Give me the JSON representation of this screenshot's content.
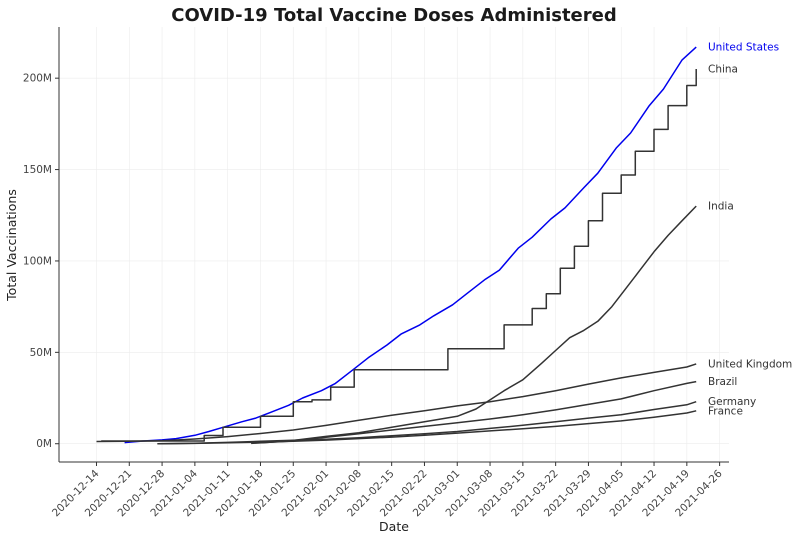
{
  "colors": {
    "highlight": "#0000ee",
    "default": "#333333"
  },
  "chart_data": {
    "type": "line",
    "title": "COVID-19 Total Vaccine Doses Administered",
    "xlabel": "Date",
    "ylabel": "Total Vaccinations",
    "xlim": [
      "2020-12-06",
      "2021-04-28"
    ],
    "ylim": [
      -10,
      228
    ],
    "y_unit": "M",
    "grid": true,
    "legend": "labels at line ends",
    "x_ticks": [
      "2020-12-14",
      "2020-12-21",
      "2020-12-28",
      "2021-01-04",
      "2021-01-11",
      "2021-01-18",
      "2021-01-25",
      "2021-02-01",
      "2021-02-08",
      "2021-02-15",
      "2021-02-22",
      "2021-03-01",
      "2021-03-08",
      "2021-03-15",
      "2021-03-22",
      "2021-03-29",
      "2021-04-05",
      "2021-04-12",
      "2021-04-19",
      "2021-04-26"
    ],
    "y_ticks": [
      0,
      50,
      100,
      150,
      200
    ],
    "y_tick_labels": [
      "0M",
      "50M",
      "100M",
      "150M",
      "200M"
    ],
    "series": [
      {
        "name": "United States",
        "highlight": true,
        "step": false,
        "x": [
          "2020-12-20",
          "2020-12-24",
          "2020-12-28",
          "2020-12-31",
          "2021-01-04",
          "2021-01-07",
          "2021-01-10",
          "2021-01-14",
          "2021-01-17",
          "2021-01-20",
          "2021-01-24",
          "2021-01-27",
          "2021-01-31",
          "2021-02-03",
          "2021-02-07",
          "2021-02-10",
          "2021-02-14",
          "2021-02-17",
          "2021-02-21",
          "2021-02-24",
          "2021-02-28",
          "2021-03-03",
          "2021-03-07",
          "2021-03-10",
          "2021-03-14",
          "2021-03-17",
          "2021-03-21",
          "2021-03-24",
          "2021-03-28",
          "2021-03-31",
          "2021-04-04",
          "2021-04-07",
          "2021-04-11",
          "2021-04-14",
          "2021-04-18",
          "2021-04-21"
        ],
        "y": [
          0.6,
          1.5,
          2.1,
          2.8,
          4.6,
          6.7,
          9,
          12,
          14,
          17,
          21,
          25,
          29,
          33,
          41,
          47,
          54,
          60,
          65,
          70,
          76,
          82,
          90,
          95,
          107,
          113,
          123,
          129,
          140,
          148,
          162,
          170,
          185,
          194,
          210,
          217
        ]
      },
      {
        "name": "China",
        "highlight": false,
        "step": true,
        "x": [
          "2020-12-15",
          "2021-01-06",
          "2021-01-10",
          "2021-01-18",
          "2021-01-25",
          "2021-01-29",
          "2021-02-02",
          "2021-02-07",
          "2021-02-27",
          "2021-03-11",
          "2021-03-17",
          "2021-03-20",
          "2021-03-23",
          "2021-03-26",
          "2021-03-29",
          "2021-04-01",
          "2021-04-05",
          "2021-04-08",
          "2021-04-12",
          "2021-04-15",
          "2021-04-19",
          "2021-04-21"
        ],
        "y": [
          1.5,
          4.5,
          9,
          15,
          23,
          24,
          31,
          40.5,
          52,
          65,
          74,
          82,
          96,
          108,
          122,
          137,
          147,
          160,
          172,
          185,
          196,
          205
        ]
      },
      {
        "name": "India",
        "highlight": false,
        "step": false,
        "x": [
          "2021-01-16",
          "2021-01-24",
          "2021-02-01",
          "2021-02-08",
          "2021-02-15",
          "2021-02-22",
          "2021-03-01",
          "2021-03-05",
          "2021-03-08",
          "2021-03-11",
          "2021-03-15",
          "2021-03-19",
          "2021-03-22",
          "2021-03-25",
          "2021-03-28",
          "2021-03-31",
          "2021-04-03",
          "2021-04-06",
          "2021-04-09",
          "2021-04-12",
          "2021-04-15",
          "2021-04-18",
          "2021-04-21"
        ],
        "y": [
          0.2,
          1.5,
          4,
          6,
          9,
          12,
          15,
          19,
          24,
          29,
          35,
          44,
          51,
          58,
          62,
          67,
          75,
          85,
          95,
          105,
          114,
          122,
          130
        ]
      },
      {
        "name": "United Kingdom",
        "highlight": false,
        "step": false,
        "x": [
          "2020-12-14",
          "2020-12-21",
          "2020-12-28",
          "2021-01-04",
          "2021-01-11",
          "2021-01-18",
          "2021-01-25",
          "2021-02-01",
          "2021-02-08",
          "2021-02-15",
          "2021-02-22",
          "2021-03-01",
          "2021-03-08",
          "2021-03-15",
          "2021-03-22",
          "2021-03-29",
          "2021-04-05",
          "2021-04-12",
          "2021-04-19",
          "2021-04-21"
        ],
        "y": [
          1.2,
          1.3,
          1.6,
          2.6,
          3.9,
          5.6,
          7.5,
          10,
          12.8,
          15.6,
          18,
          20.7,
          23,
          25.8,
          29,
          32.6,
          36,
          39,
          42,
          43.7
        ]
      },
      {
        "name": "Brazil",
        "highlight": false,
        "step": false,
        "x": [
          "2021-01-18",
          "2021-01-25",
          "2021-02-01",
          "2021-02-08",
          "2021-02-15",
          "2021-02-22",
          "2021-03-01",
          "2021-03-08",
          "2021-03-15",
          "2021-03-22",
          "2021-03-29",
          "2021-04-05",
          "2021-04-12",
          "2021-04-19",
          "2021-04-21"
        ],
        "y": [
          0.5,
          1.5,
          3.5,
          5.5,
          7.5,
          9.5,
          11.5,
          13.5,
          15.8,
          18.5,
          21.5,
          24.5,
          29,
          33,
          34
        ]
      },
      {
        "name": "Germany",
        "highlight": false,
        "step": false,
        "x": [
          "2020-12-27",
          "2021-01-04",
          "2021-01-11",
          "2021-01-18",
          "2021-01-25",
          "2021-02-01",
          "2021-02-08",
          "2021-02-15",
          "2021-02-22",
          "2021-03-01",
          "2021-03-08",
          "2021-03-15",
          "2021-03-22",
          "2021-03-29",
          "2021-04-05",
          "2021-04-12",
          "2021-04-19",
          "2021-04-21"
        ],
        "y": [
          0,
          0.3,
          0.7,
          1.3,
          1.9,
          2.5,
          3.3,
          4.4,
          5.5,
          6.7,
          8.4,
          10.1,
          12,
          14,
          15.8,
          18.7,
          21.3,
          23
        ]
      },
      {
        "name": "France",
        "highlight": false,
        "step": false,
        "x": [
          "2020-12-27",
          "2021-01-04",
          "2021-01-11",
          "2021-01-18",
          "2021-01-25",
          "2021-02-01",
          "2021-02-08",
          "2021-02-15",
          "2021-02-22",
          "2021-03-01",
          "2021-03-08",
          "2021-03-15",
          "2021-03-22",
          "2021-03-29",
          "2021-04-05",
          "2021-04-12",
          "2021-04-19",
          "2021-04-21"
        ],
        "y": [
          0,
          0.2,
          0.5,
          0.9,
          1.4,
          2,
          2.8,
          3.6,
          4.6,
          5.8,
          7,
          8.2,
          9.5,
          11,
          12.5,
          14.5,
          16.8,
          18
        ]
      }
    ]
  }
}
